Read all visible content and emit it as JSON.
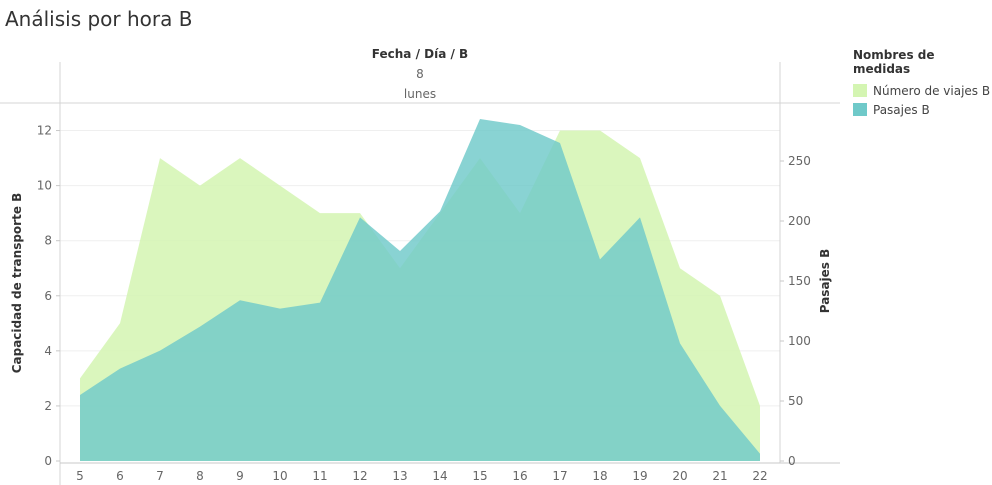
{
  "page_title": "Análisis por hora B",
  "legend": {
    "title": "Nombres de medidas",
    "items": [
      {
        "label": "Número de viajes B",
        "color": "#d4f5b2"
      },
      {
        "label": "Pasajes B",
        "color": "#6fc9c9"
      }
    ]
  },
  "chart_data": {
    "type": "area",
    "header_title": "Fecha / Día / B",
    "header_date": "8",
    "header_weekday": "lunes",
    "x": [
      5,
      6,
      7,
      8,
      9,
      10,
      11,
      12,
      13,
      14,
      15,
      16,
      17,
      18,
      19,
      20,
      21,
      22
    ],
    "ylabel_left": "Capacidad de transporte B",
    "ylabel_right": "Pasajes B",
    "ylim_left": [
      0,
      13
    ],
    "ylim_right": [
      0,
      300
    ],
    "yticks_left": [
      0,
      2,
      4,
      6,
      8,
      10,
      12
    ],
    "yticks_right": [
      0,
      50,
      100,
      150,
      200,
      250
    ],
    "series": [
      {
        "name": "Número de viajes B",
        "axis": "left",
        "color": "#d4f5b2",
        "values": [
          3,
          5,
          11,
          10,
          11,
          10,
          9,
          9,
          7,
          9,
          11,
          9,
          12,
          12,
          11,
          7,
          6,
          2
        ]
      },
      {
        "name": "Pasajes B",
        "axis": "right",
        "color": "#6fc9c9",
        "values": [
          55,
          77,
          92,
          112,
          134,
          127,
          132,
          203,
          175,
          208,
          285,
          280,
          265,
          168,
          203,
          98,
          46,
          6
        ]
      }
    ]
  }
}
